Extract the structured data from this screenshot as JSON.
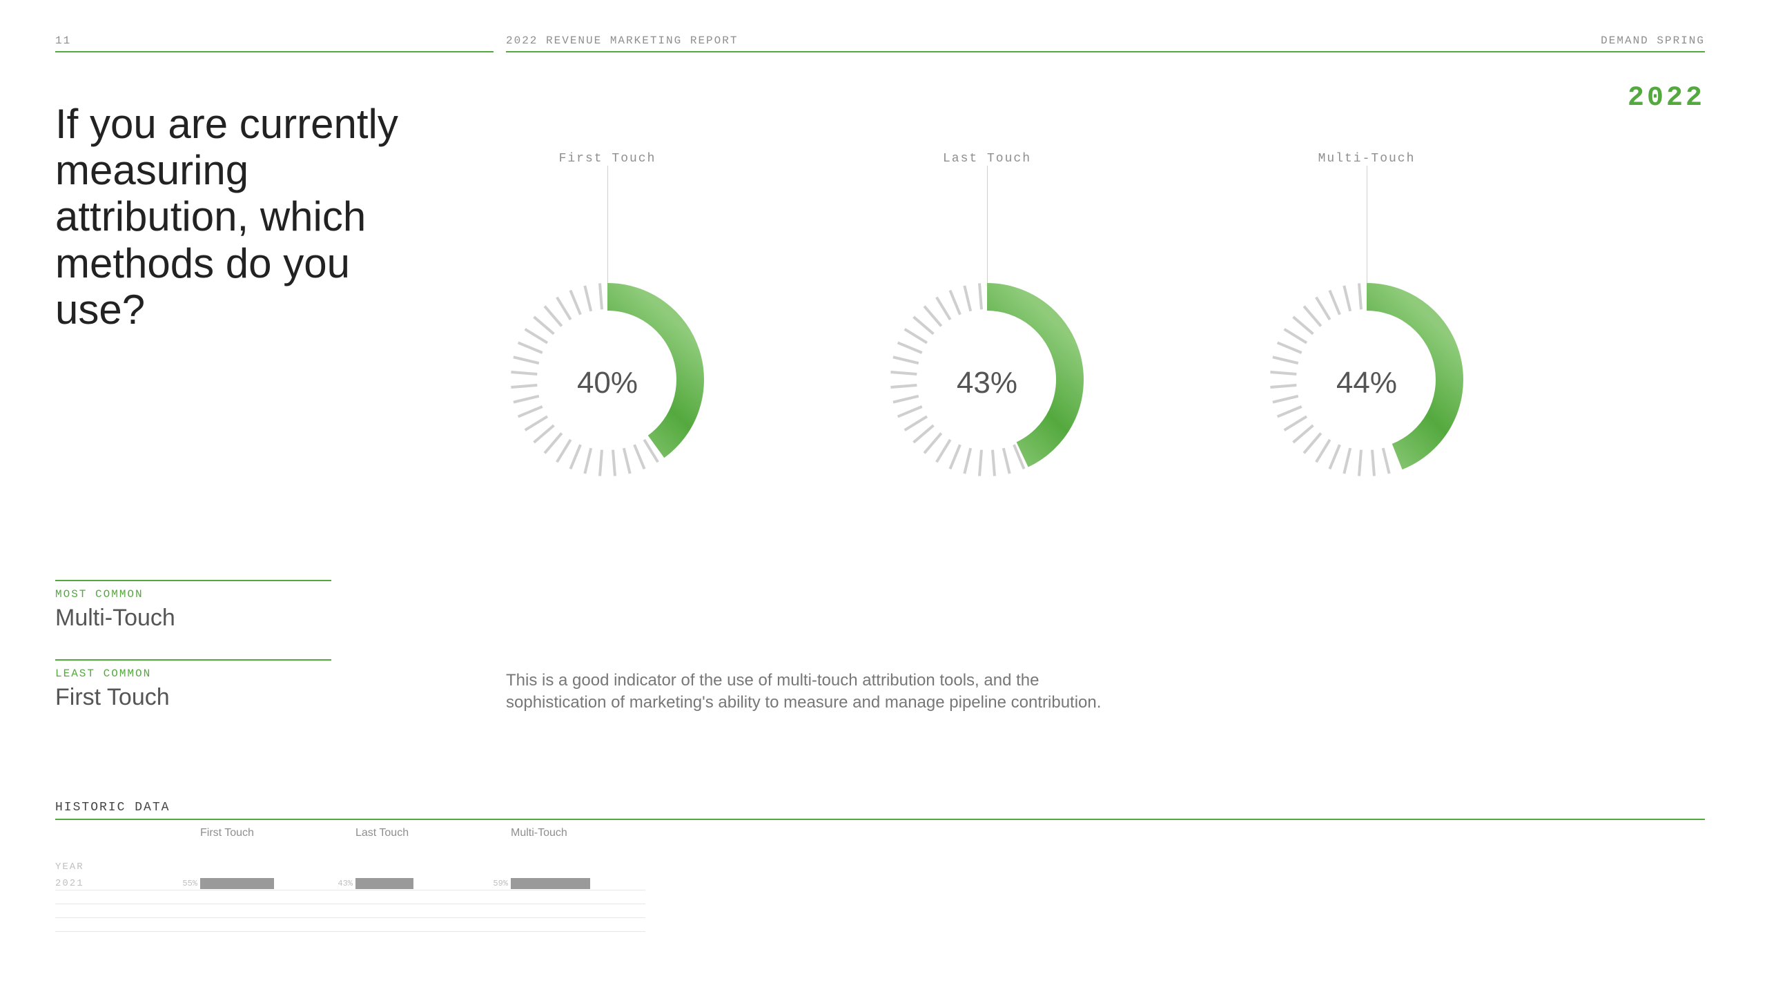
{
  "colors": {
    "accent": "#54a93e",
    "accent_light": "#8fcb7b",
    "tick": "#cfcfcf",
    "text_muted": "#8e8e8e",
    "bar_fill": "#9a9a9a",
    "rule": "#e6e6e6"
  },
  "header": {
    "page_number": "11",
    "report_title": "2022 REVENUE MARKETING REPORT",
    "brand": "DEMAND SPRING"
  },
  "year_badge": "2022",
  "title": "If you are currently measuring attribution, which methods do you use?",
  "gauges": {
    "type": "radial-gauge",
    "tick_count": 40,
    "ring_outer_radius": 140,
    "ring_inner_radius": 100,
    "tick_inner_radius": 102,
    "tick_outer_radius": 140,
    "value_fontsize": 44,
    "label_fontsize": 18,
    "items": [
      {
        "label": "First Touch",
        "value": 40,
        "display": "40%"
      },
      {
        "label": "Last Touch",
        "value": 43,
        "display": "43%"
      },
      {
        "label": "Multi-Touch",
        "value": 44,
        "display": "44%"
      }
    ]
  },
  "sidebar": {
    "most_common": {
      "label": "MOST COMMON",
      "value": "Multi-Touch"
    },
    "least_common": {
      "label": "LEAST COMMON",
      "value": "First Touch"
    }
  },
  "body_copy": "This is a good indicator of the use of multi-touch attribution tools, and the sophistication of marketing's ability to measure and manage pipeline contribution.",
  "historic": {
    "title": "HISTORIC DATA",
    "year_column_label": "YEAR",
    "columns": [
      "First Touch",
      "Last Touch",
      "Multi-Touch"
    ],
    "rows": [
      {
        "year": "2021",
        "values": [
          55,
          43,
          59
        ],
        "displays": [
          "55%",
          "43%",
          "59%"
        ]
      }
    ],
    "empty_rows": 3,
    "bar_max": 100
  }
}
